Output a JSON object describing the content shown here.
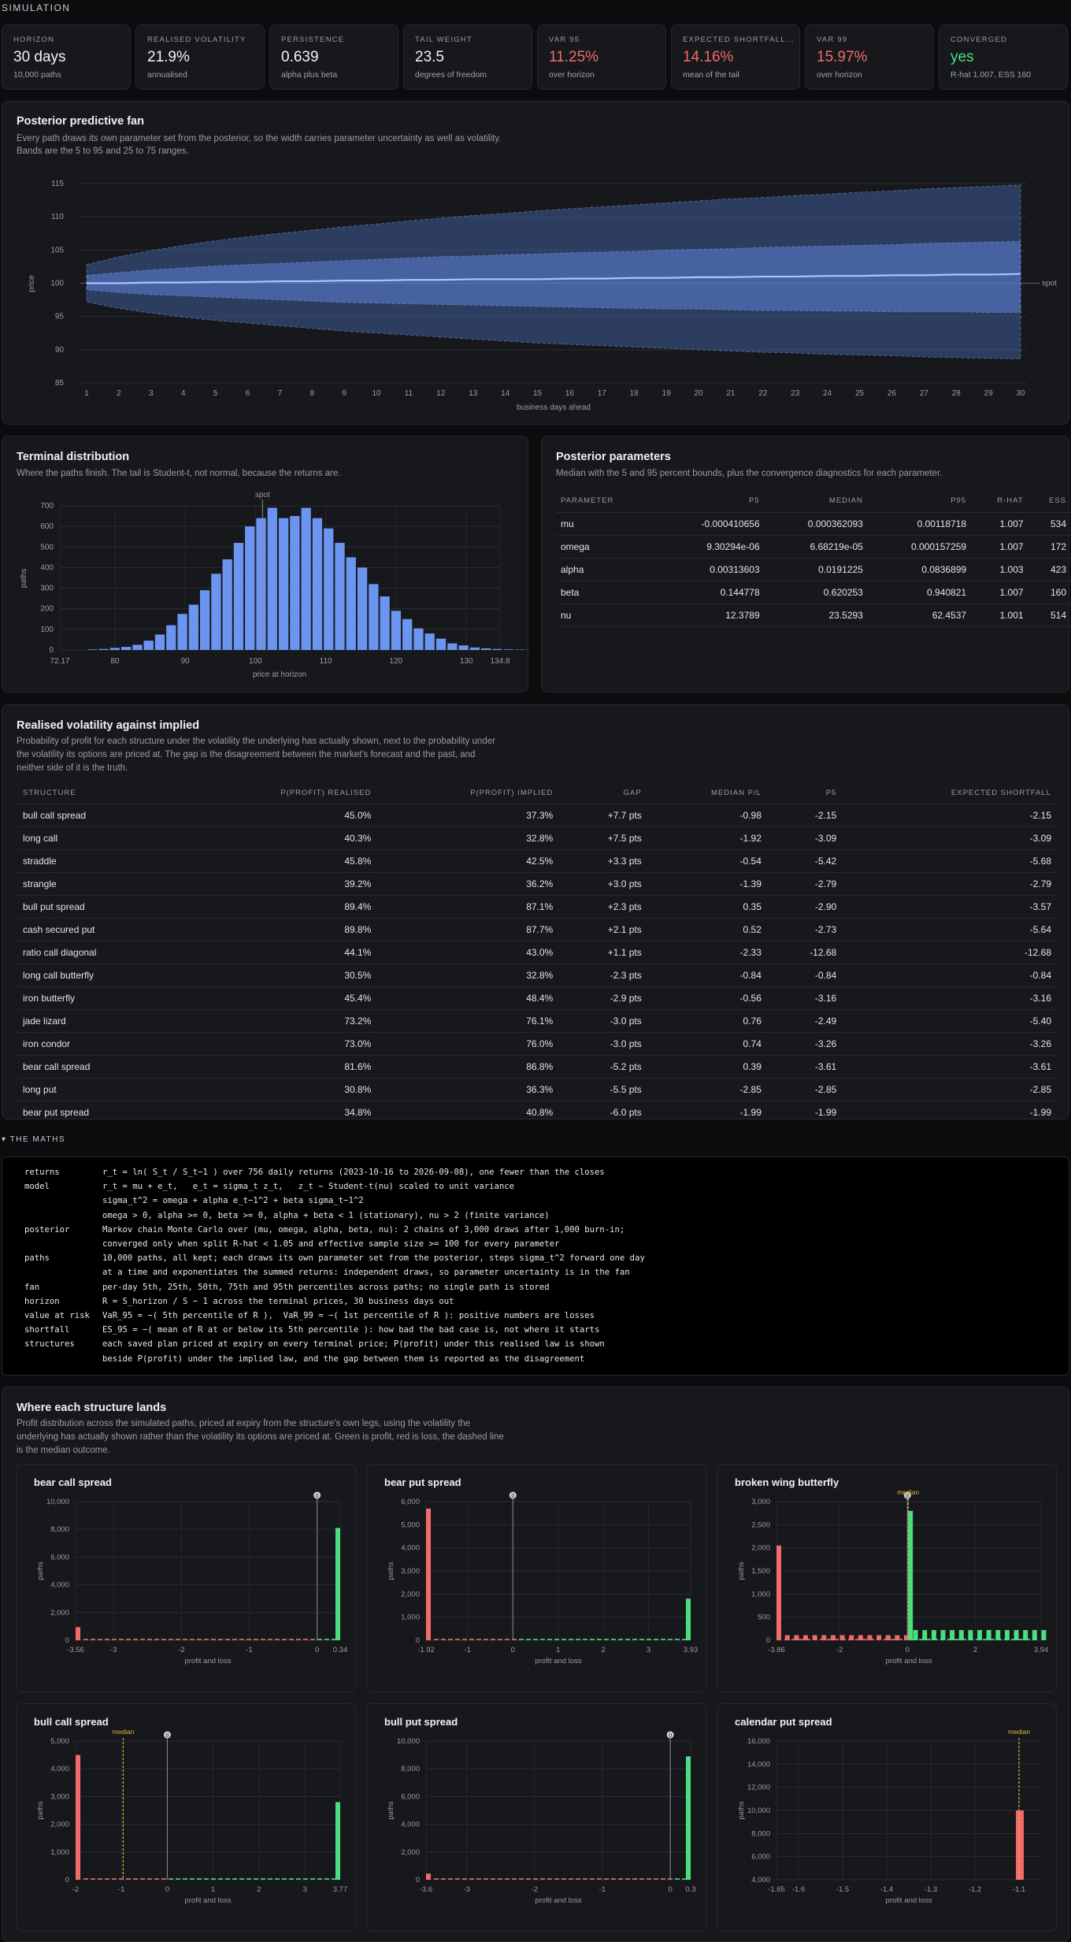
{
  "section_label": "SIMULATION",
  "stats": [
    {
      "label": "HORIZON",
      "value": "30 days",
      "sub": "10,000 paths",
      "tone": "normal"
    },
    {
      "label": "REALISED VOLATILITY",
      "value": "21.9%",
      "sub": "annualised",
      "tone": "normal"
    },
    {
      "label": "PERSISTENCE",
      "value": "0.639",
      "sub": "alpha plus beta",
      "tone": "normal"
    },
    {
      "label": "TAIL WEIGHT",
      "value": "23.5",
      "sub": "degrees of freedom",
      "tone": "normal"
    },
    {
      "label": "VAR 95",
      "value": "11.25%",
      "sub": "over horizon",
      "tone": "red"
    },
    {
      "label": "EXPECTED SHORTFALL...",
      "value": "14.16%",
      "sub": "mean of the tail",
      "tone": "red"
    },
    {
      "label": "VAR 99",
      "value": "15.97%",
      "sub": "over horizon",
      "tone": "red"
    },
    {
      "label": "CONVERGED",
      "value": "yes",
      "sub": "R-hat 1.007, ESS 160",
      "tone": "green"
    }
  ],
  "fan": {
    "title": "Posterior predictive fan",
    "desc1": "Every path draws its own parameter set from the posterior, so the width carries parameter uncertainty as well as volatility.",
    "desc2": "Bands are the 5 to 95 and 25 to 75 ranges.",
    "ylabel": "price",
    "xlabel": "business days ahead",
    "spot_label": "spot"
  },
  "terminal": {
    "title": "Terminal distribution",
    "desc": "Where the paths finish. The tail is Student-t, not normal, because the returns are.",
    "ylabel": "paths",
    "xlabel": "price at horizon",
    "spot_label": "spot"
  },
  "posterior": {
    "title": "Posterior parameters",
    "desc": "Median with the 5 and 95 percent bounds, plus the convergence diagnostics for each parameter.",
    "headers": [
      "PARAMETER",
      "P5",
      "MEDIAN",
      "P95",
      "R-HAT",
      "ESS"
    ],
    "rows": [
      [
        "mu",
        "-0.000410656",
        "0.000362093",
        "0.00118718",
        "1.007",
        "534"
      ],
      [
        "omega",
        "9.30294e-06",
        "6.68219e-05",
        "0.000157259",
        "1.007",
        "172"
      ],
      [
        "alpha",
        "0.00313603",
        "0.0191225",
        "0.0836899",
        "1.003",
        "423"
      ],
      [
        "beta",
        "0.144778",
        "0.620253",
        "0.940821",
        "1.007",
        "160"
      ],
      [
        "nu",
        "12.3789",
        "23.5293",
        "62.4537",
        "1.001",
        "514"
      ]
    ]
  },
  "vol": {
    "title": "Realised volatility against implied",
    "desc1": "Probability of profit for each structure under the volatility the underlying has actually shown, next to the probability under",
    "desc2": "the volatility its options are priced at. The gap is the disagreement between the market's forecast and the past, and",
    "desc3": "neither side of it is the truth.",
    "headers": [
      "STRUCTURE",
      "P(PROFIT) REALISED",
      "P(PROFIT) IMPLIED",
      "GAP",
      "MEDIAN P/L",
      "P5",
      "EXPECTED SHORTFALL"
    ],
    "rows": [
      [
        "bull call spread",
        "45.0%",
        "37.3%",
        "+7.7 pts",
        "-0.98",
        "-2.15",
        "-2.15"
      ],
      [
        "long call",
        "40.3%",
        "32.8%",
        "+7.5 pts",
        "-1.92",
        "-3.09",
        "-3.09"
      ],
      [
        "straddle",
        "45.8%",
        "42.5%",
        "+3.3 pts",
        "-0.54",
        "-5.42",
        "-5.68"
      ],
      [
        "strangle",
        "39.2%",
        "36.2%",
        "+3.0 pts",
        "-1.39",
        "-2.79",
        "-2.79"
      ],
      [
        "bull put spread",
        "89.4%",
        "87.1%",
        "+2.3 pts",
        "0.35",
        "-2.90",
        "-3.57"
      ],
      [
        "cash secured put",
        "89.8%",
        "87.7%",
        "+2.1 pts",
        "0.52",
        "-2.73",
        "-5.64"
      ],
      [
        "ratio call diagonal",
        "44.1%",
        "43.0%",
        "+1.1 pts",
        "-2.33",
        "-12.68",
        "-12.68"
      ],
      [
        "long call butterfly",
        "30.5%",
        "32.8%",
        "-2.3 pts",
        "-0.84",
        "-0.84",
        "-0.84"
      ],
      [
        "iron butterfly",
        "45.4%",
        "48.4%",
        "-2.9 pts",
        "-0.56",
        "-3.16",
        "-3.16"
      ],
      [
        "jade lizard",
        "73.2%",
        "76.1%",
        "-3.0 pts",
        "0.76",
        "-2.49",
        "-5.40"
      ],
      [
        "iron condor",
        "73.0%",
        "76.0%",
        "-3.0 pts",
        "0.74",
        "-3.26",
        "-3.26"
      ],
      [
        "bear call spread",
        "81.6%",
        "86.8%",
        "-5.2 pts",
        "0.39",
        "-3.61",
        "-3.61"
      ],
      [
        "long put",
        "30.8%",
        "36.3%",
        "-5.5 pts",
        "-2.85",
        "-2.85",
        "-2.85"
      ],
      [
        "bear put spread",
        "34.8%",
        "40.8%",
        "-6.0 pts",
        "-1.99",
        "-1.99",
        "-1.99"
      ]
    ]
  },
  "maths": {
    "heading": "▾ THE MATHS",
    "lines": [
      {
        "k": "returns",
        "v": "r_t = ln( S_t / S_t−1 ) over 756 daily returns (2023-10-16 to 2026-09-08), one fewer than the closes"
      },
      {
        "k": "model",
        "v": "r_t = mu + e_t,   e_t = sigma_t z_t,   z_t ~ Student-t(nu) scaled to unit variance"
      },
      {
        "k": "",
        "v": "sigma_t^2 = omega + alpha e_t−1^2 + beta sigma_t−1^2"
      },
      {
        "k": "",
        "v": "omega > 0, alpha >= 0, beta >= 0, alpha + beta < 1 (stationary), nu > 2 (finite variance)"
      },
      {
        "k": "posterior",
        "v": "Markov chain Monte Carlo over (mu, omega, alpha, beta, nu): 2 chains of 3,000 draws after 1,000 burn-in;"
      },
      {
        "k": "",
        "v": "converged only when split R-hat < 1.05 and effective sample size >= 100 for every parameter"
      },
      {
        "k": "paths",
        "v": "10,000 paths, all kept; each draws its own parameter set from the posterior, steps sigma_t^2 forward one day"
      },
      {
        "k": "",
        "v": "at a time and exponentiates the summed returns: independent draws, so parameter uncertainty is in the fan"
      },
      {
        "k": "fan",
        "v": "per-day 5th, 25th, 50th, 75th and 95th percentiles across paths; no single path is stored"
      },
      {
        "k": "horizon",
        "v": "R = S_horizon / S − 1 across the terminal prices, 30 business days out"
      },
      {
        "k": "value at risk",
        "v": "VaR_95 = −( 5th percentile of R ),  VaR_99 = −( 1st percentile of R ): positive numbers are losses"
      },
      {
        "k": "shortfall",
        "v": "ES_95 = −( mean of R at or below its 5th percentile ): how bad the bad case is, not where it starts"
      },
      {
        "k": "structures",
        "v": "each saved plan priced at expiry on every terminal price; P(profit) under this realised law is shown"
      },
      {
        "k": "",
        "v": "beside P(profit) under the implied law, and the gap between them is reported as the disagreement"
      }
    ]
  },
  "lands": {
    "title": "Where each structure lands",
    "desc1": "Profit distribution across the simulated paths, priced at expiry from the structure's own legs, using the volatility the",
    "desc2": "underlying has actually shown rather than the volatility its options are priced at. Green is profit, red is loss, the dashed line",
    "desc3": "is the median outcome.",
    "ylabel": "paths",
    "xlabel": "profit and loss",
    "median_label": "median",
    "zero_label": "0"
  },
  "colors": {
    "bar": "#6b95f0",
    "loss": "#f26a6a",
    "profit": "#4ade80",
    "median": "#e0b23a"
  },
  "chart_data": [
    {
      "type": "area",
      "name": "fan",
      "x": [
        1,
        2,
        3,
        4,
        5,
        6,
        7,
        8,
        9,
        10,
        11,
        12,
        13,
        14,
        15,
        16,
        17,
        18,
        19,
        20,
        21,
        22,
        23,
        24,
        25,
        26,
        27,
        28,
        29,
        30
      ],
      "p5": [
        97.2,
        96.2,
        95.5,
        94.9,
        94.4,
        94.0,
        93.6,
        93.2,
        92.8,
        92.5,
        92.2,
        91.9,
        91.6,
        91.3,
        91.0,
        90.8,
        90.6,
        90.4,
        90.2,
        90.0,
        89.8,
        89.6,
        89.5,
        89.3,
        89.2,
        89.1,
        88.9,
        88.8,
        88.7,
        88.6
      ],
      "p25": [
        99.0,
        98.6,
        98.3,
        98.1,
        97.9,
        97.7,
        97.5,
        97.3,
        97.1,
        97.0,
        96.9,
        96.8,
        96.7,
        96.6,
        96.5,
        96.4,
        96.3,
        96.2,
        96.1,
        96.1,
        96.0,
        95.9,
        95.9,
        95.8,
        95.8,
        95.7,
        95.7,
        95.7,
        95.6,
        95.6
      ],
      "p50": [
        100.0,
        100.0,
        100.1,
        100.1,
        100.2,
        100.2,
        100.3,
        100.3,
        100.4,
        100.4,
        100.5,
        100.5,
        100.6,
        100.6,
        100.6,
        100.7,
        100.7,
        100.8,
        100.8,
        100.9,
        100.9,
        101.0,
        101.0,
        101.1,
        101.1,
        101.2,
        101.2,
        101.3,
        101.3,
        101.4
      ],
      "p75": [
        101.2,
        101.6,
        102.0,
        102.3,
        102.6,
        102.8,
        103.0,
        103.2,
        103.4,
        103.6,
        103.8,
        104.0,
        104.1,
        104.3,
        104.4,
        104.6,
        104.7,
        104.8,
        105.0,
        105.1,
        105.2,
        105.4,
        105.5,
        105.6,
        105.7,
        105.8,
        106.0,
        106.1,
        106.2,
        106.3
      ],
      "p95": [
        102.8,
        104.0,
        104.9,
        105.7,
        106.4,
        107.0,
        107.5,
        108.0,
        108.5,
        108.9,
        109.4,
        109.8,
        110.2,
        110.5,
        110.9,
        111.2,
        111.5,
        111.8,
        112.1,
        112.4,
        112.7,
        112.9,
        113.2,
        113.4,
        113.7,
        113.9,
        114.2,
        114.4,
        114.6,
        114.8
      ],
      "spot": 100,
      "ylim": [
        85,
        115
      ],
      "yticks": [
        85,
        90,
        95,
        100,
        105,
        110,
        115
      ]
    },
    {
      "type": "bar",
      "name": "terminal",
      "bin_start": 76,
      "bin_width": 1.6,
      "values": [
        3,
        5,
        10,
        15,
        25,
        45,
        75,
        120,
        175,
        220,
        290,
        370,
        440,
        520,
        600,
        640,
        690,
        640,
        650,
        690,
        640,
        590,
        520,
        450,
        400,
        320,
        260,
        190,
        150,
        105,
        80,
        55,
        32,
        22,
        12,
        8,
        5,
        3,
        2,
        1
      ],
      "xlim": [
        72.17,
        134.8
      ],
      "xticks": [
        72.17,
        80,
        90,
        100,
        110,
        120,
        130,
        134.8
      ],
      "ylim": [
        0,
        700
      ],
      "yticks": [
        0,
        100,
        200,
        300,
        400,
        500,
        600,
        700
      ],
      "spot": 101
    },
    {
      "type": "bar",
      "name": "bear call spread",
      "xlim": [
        -3.56,
        0.34
      ],
      "xticks": [
        -3.56,
        -3,
        -2,
        -1,
        0,
        0.34
      ],
      "ylim": [
        0,
        10000
      ],
      "yticks": [
        0,
        2000,
        4000,
        6000,
        8000,
        "10,000"
      ],
      "values_start": 950,
      "values_end": 8100,
      "median": 0.39
    },
    {
      "type": "bar",
      "name": "bear put spread",
      "xlim": [
        -1.92,
        3.93
      ],
      "xticks": [
        -1.92,
        -1,
        0,
        1,
        2,
        3,
        3.93
      ],
      "ylim": [
        0,
        6000
      ],
      "yticks": [
        0,
        1000,
        2000,
        3000,
        4000,
        5000,
        6000
      ],
      "values_start": 5700,
      "values_end": 1800,
      "median": -1.99
    },
    {
      "type": "bar",
      "name": "broken wing butterfly",
      "xlim": [
        -3.86,
        3.94
      ],
      "xticks": [
        -3.86,
        -2,
        0,
        2,
        3.94
      ],
      "ylim": [
        0,
        3000
      ],
      "yticks": [
        0,
        500,
        1000,
        1500,
        2000,
        2500,
        3000
      ],
      "values_start": 2050,
      "values_peak": 2800,
      "median": 0.0
    },
    {
      "type": "bar",
      "name": "bull call spread",
      "xlim": [
        -2,
        3.77
      ],
      "xticks": [
        -2,
        -1,
        0,
        1,
        2,
        3,
        3.77
      ],
      "ylim": [
        0,
        5000
      ],
      "yticks": [
        0,
        1000,
        2000,
        3000,
        4000,
        5000
      ],
      "values_start": 4500,
      "values_end": 2800,
      "median": -0.98
    },
    {
      "type": "bar",
      "name": "bull put spread",
      "xlim": [
        -3.6,
        0.3
      ],
      "xticks": [
        -3.6,
        -3,
        -2,
        -1,
        0,
        0.3
      ],
      "ylim": [
        0,
        10000
      ],
      "yticks": [
        0,
        2000,
        4000,
        6000,
        8000,
        "10,000"
      ],
      "values_start": 450,
      "values_end": 8900,
      "median": 0.35
    },
    {
      "type": "bar",
      "name": "calendar put spread",
      "xlim": [
        -1.65,
        -1.05
      ],
      "xticks": [
        -1.65,
        -1.6,
        -1.5,
        -1.4,
        -1.3,
        -1.2,
        -1.1
      ],
      "ylim": [
        4000,
        16000
      ],
      "yticks": [
        4000,
        6000,
        8000,
        10000,
        12000,
        14000,
        16000
      ],
      "values_end": 10000,
      "median": -1.1
    }
  ]
}
